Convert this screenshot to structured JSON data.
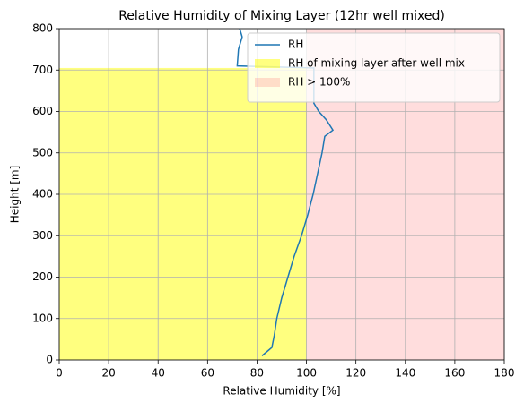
{
  "chart_data": {
    "type": "line",
    "title": "Relative Humidity of Mixing Layer (12hr well mixed)",
    "xlabel": "Relative Humidity [%]",
    "ylabel": "Height [m]",
    "xlim": [
      0,
      180
    ],
    "xticks": [
      0,
      20,
      40,
      60,
      80,
      100,
      120,
      140,
      160,
      180
    ],
    "ylim": [
      0,
      800
    ],
    "yticks": [
      0,
      100,
      200,
      300,
      400,
      500,
      600,
      700,
      800
    ],
    "grid": true,
    "legend": "upper right",
    "series": [
      {
        "name": "RH",
        "color": "#1f77b4",
        "x": [
          82,
          84,
          86,
          87,
          88,
          90,
          92.5,
          95,
          98,
          100.5,
          102.7,
          104.5,
          106.3,
          107.4,
          110.7,
          108,
          105,
          103,
          103,
          103,
          72,
          72.5,
          74,
          73
        ],
        "y": [
          10,
          20,
          30,
          60,
          100,
          150,
          200,
          250,
          300,
          350,
          400,
          450,
          500,
          540,
          555,
          580,
          600,
          620,
          680,
          705,
          710,
          750,
          780,
          800
        ]
      }
    ],
    "regions": [
      {
        "name": "RH of mixing layer after well mix",
        "color": "#ffff00",
        "opacity": 0.5,
        "xrange": [
          0,
          100
        ],
        "yrange": [
          0,
          705
        ]
      },
      {
        "name": "RH > 100%",
        "color": "#ff6666",
        "opacity": 0.22,
        "xrange": [
          100,
          180
        ],
        "yrange": [
          0,
          800
        ]
      }
    ]
  }
}
